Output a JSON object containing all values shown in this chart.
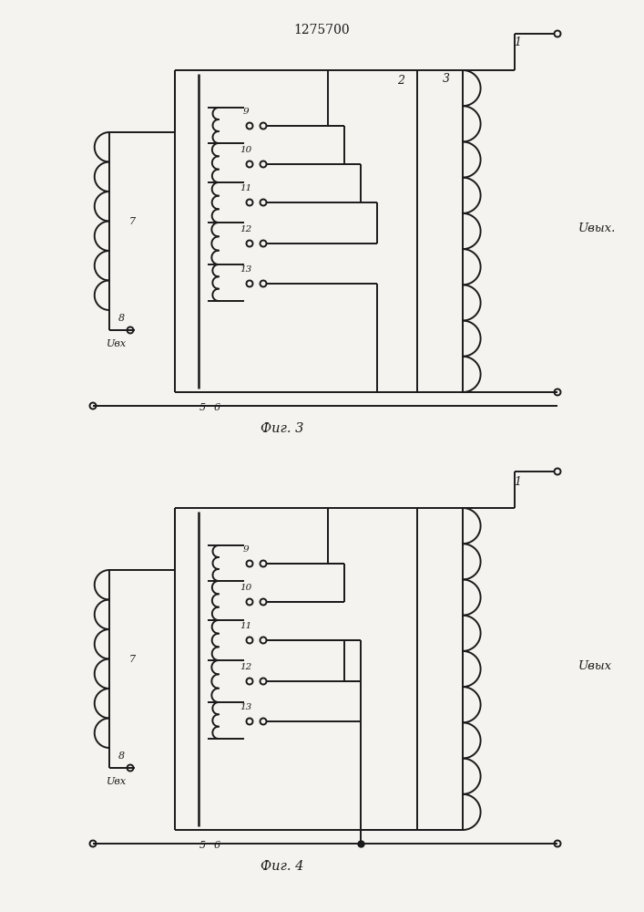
{
  "title": "1275700",
  "fig3_label": "Фиг. 3",
  "fig4_label": "Фиг. 4",
  "uvx_label": "Uвх",
  "uvyx_label1": "Uвых.",
  "uvyx_label2": "Uвых",
  "tap_labels": [
    "9",
    "10",
    "11",
    "12",
    "13"
  ],
  "bg_color": "#f5f3ef",
  "line_color": "#1a1a1a",
  "lw": 1.4
}
